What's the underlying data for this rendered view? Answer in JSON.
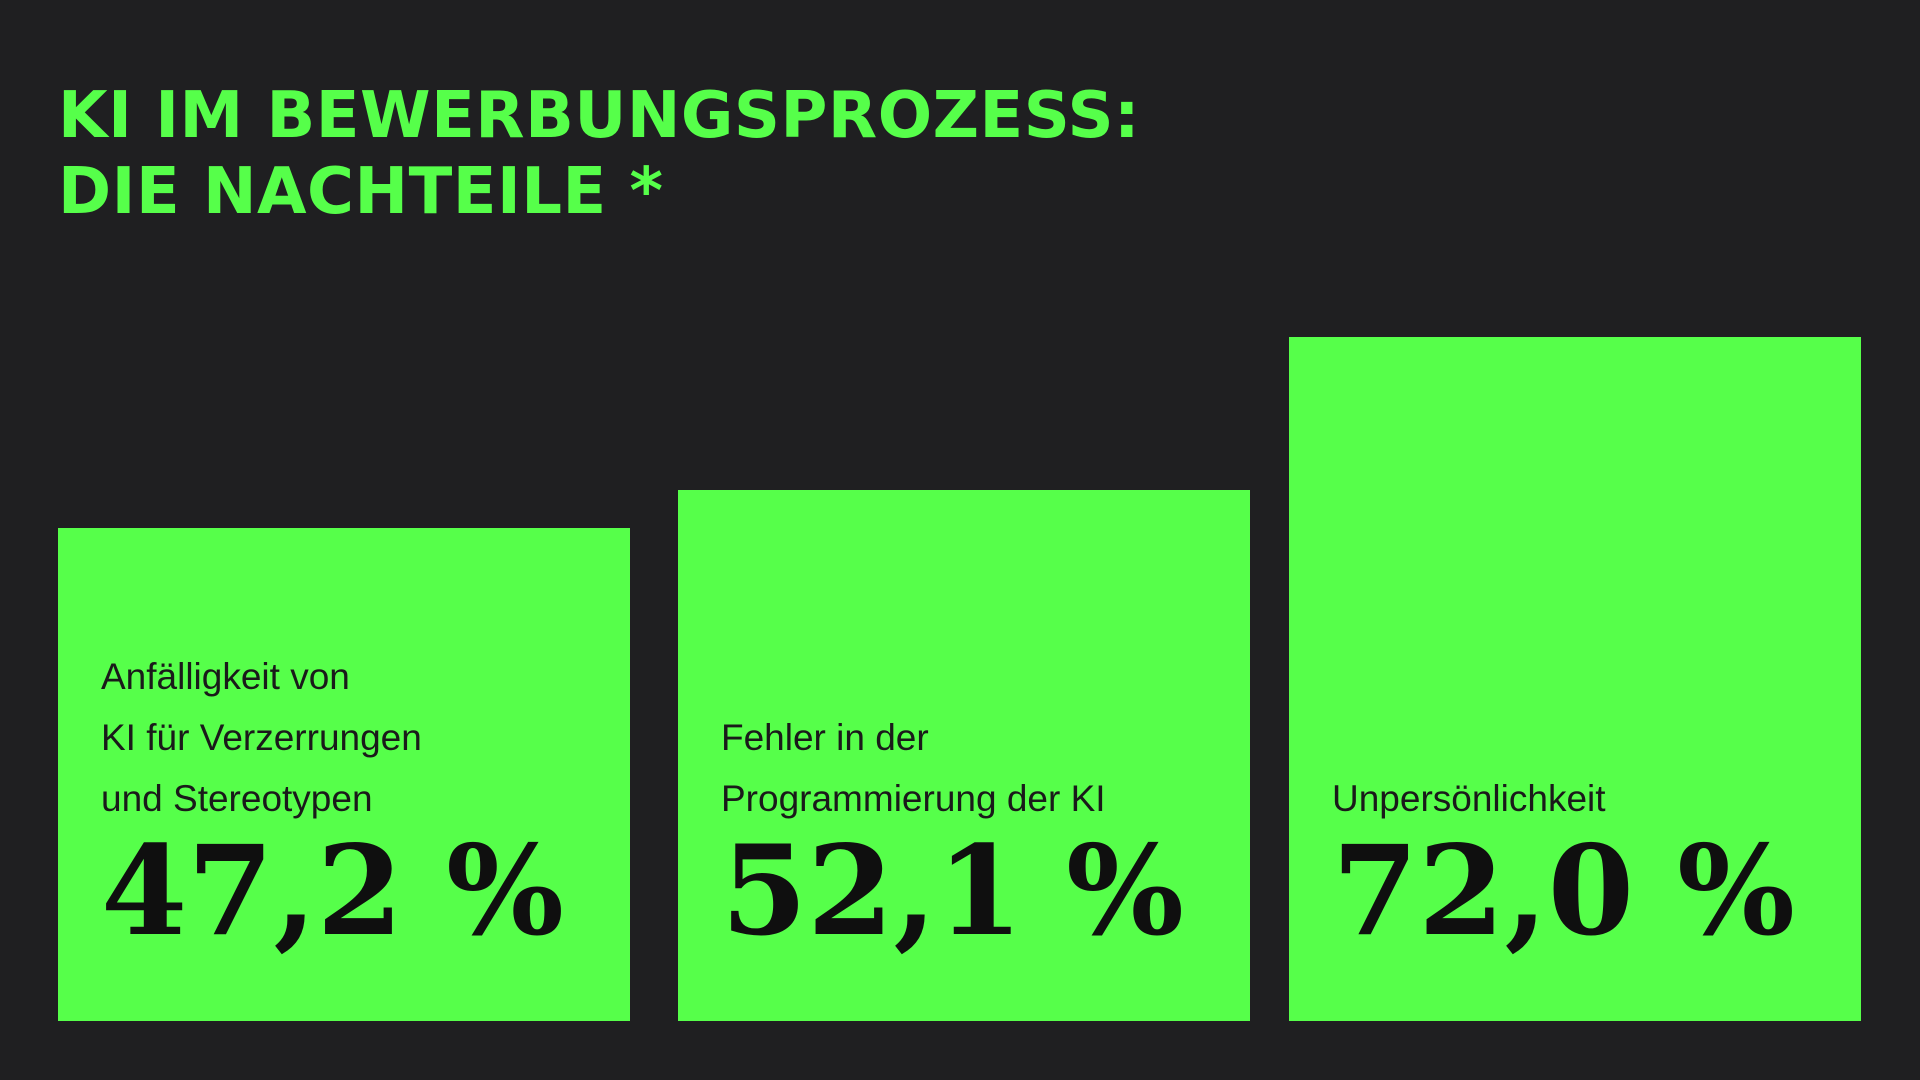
{
  "chart_data": {
    "type": "bar",
    "title_lines": [
      "KI IM BEWERBUNGSPROZESS:",
      "DIE NACHTEILE *"
    ],
    "categories": [
      "Anfälligkeit von\nKI für Verzerrungen\nund Stereotypen",
      "Fehler in der\nProgrammierung der KI",
      "Unpersönlichkeit"
    ],
    "values": [
      47.2,
      52.1,
      72.0
    ],
    "value_labels": [
      "47,2 %",
      "52,1 %",
      "72,0 %"
    ],
    "xlabel": "",
    "ylabel": "",
    "ylim": [
      0,
      100
    ],
    "grid": false,
    "legend": "none"
  },
  "colors": {
    "background": "#1f1f21",
    "accent": "#56ff4a",
    "text_dark": "#0f0f0f"
  }
}
